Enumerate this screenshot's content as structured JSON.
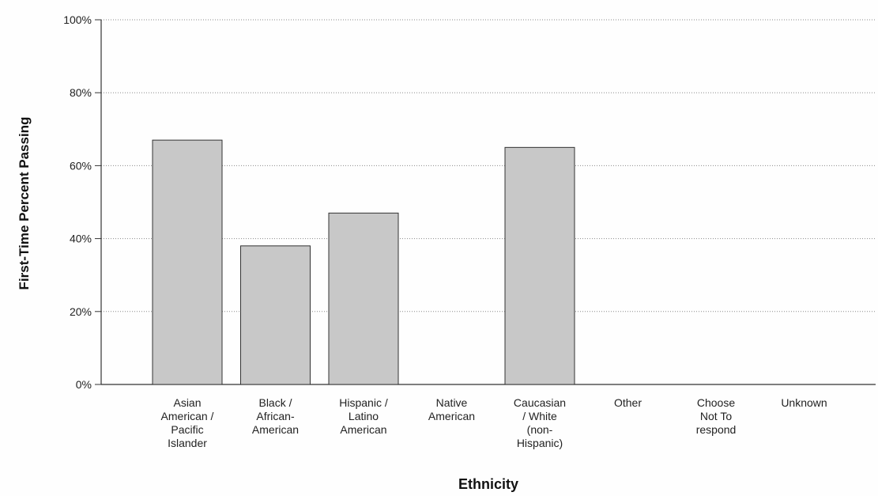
{
  "chart_data": {
    "type": "bar",
    "title": "",
    "xlabel": "Ethnicity",
    "ylabel": "First-Time Percent Passing",
    "ylim": [
      0,
      100
    ],
    "yticks": [
      "0%",
      "20%",
      "40%",
      "60%",
      "80%",
      "100%"
    ],
    "grid": true,
    "legend": "none",
    "bar_color": "#c8c8c8",
    "categories": [
      [
        "Asian",
        "American /",
        "Pacific",
        "Islander"
      ],
      [
        "Black /",
        "African-",
        "American"
      ],
      [
        "Hispanic /",
        "Latino",
        "American"
      ],
      [
        "Native",
        "American"
      ],
      [
        "Caucasian",
        "/ White",
        "(non-",
        "Hispanic)"
      ],
      [
        "Other"
      ],
      [
        "Choose",
        "Not To",
        "respond"
      ],
      [
        "Unknown"
      ]
    ],
    "values": [
      67,
      38,
      47,
      0,
      65,
      0,
      0,
      0
    ]
  }
}
